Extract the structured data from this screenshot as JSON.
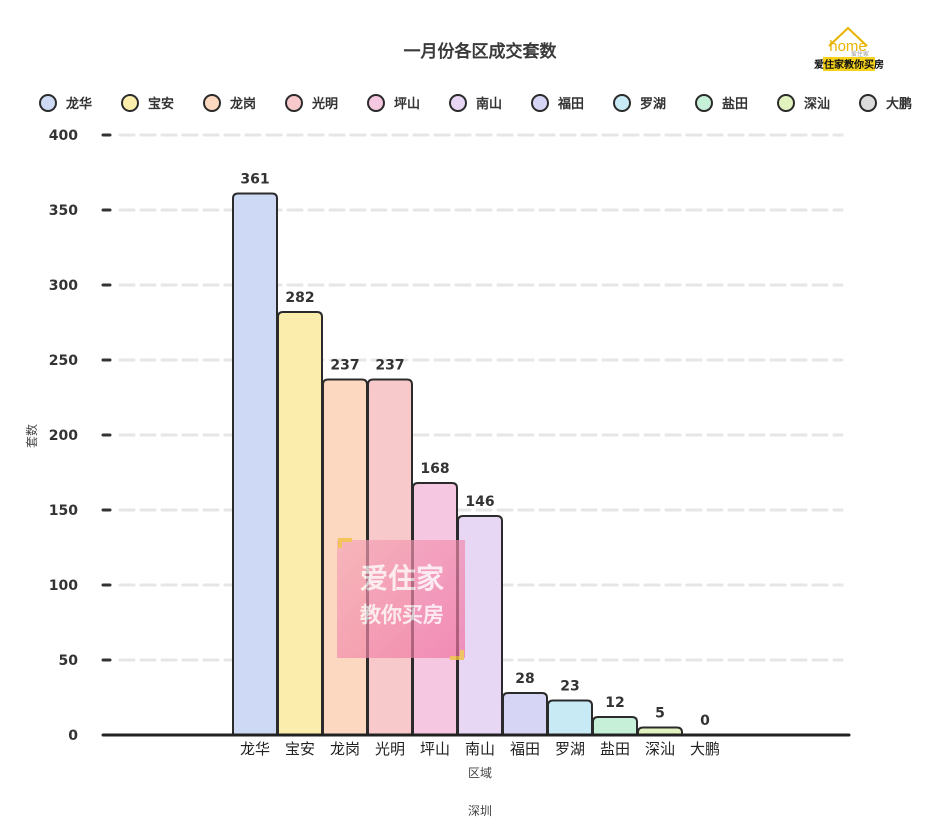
{
  "chart_data": {
    "type": "bar",
    "title": "一月份各区成交套数",
    "categories": [
      "龙华",
      "宝安",
      "龙岗",
      "光明",
      "坪山",
      "南山",
      "福田",
      "罗湖",
      "盐田",
      "深汕",
      "大鹏"
    ],
    "values": [
      361,
      282,
      237,
      237,
      168,
      146,
      28,
      23,
      12,
      5,
      0
    ],
    "colors": [
      "#cdd9f5",
      "#fbeeac",
      "#fbd8bf",
      "#f8c9cb",
      "#f6c7e0",
      "#e8d6f5",
      "#d7d5f5",
      "#c8eaf5",
      "#c6f0d8",
      "#e2f3bf",
      "#dcdcdc"
    ],
    "xlabel": "区域",
    "ylabel": "套数",
    "footer": "深圳",
    "ylim": [
      0,
      400
    ],
    "yticks": [
      0,
      50,
      100,
      150,
      200,
      250,
      300,
      350,
      400
    ],
    "grid": true,
    "legend_position": "top"
  },
  "logo": {
    "word": "home",
    "tagline": "爱住家",
    "slogan": "爱住家教你买房"
  },
  "watermark": {
    "line1": "爱住家",
    "line2": "教你买房"
  }
}
